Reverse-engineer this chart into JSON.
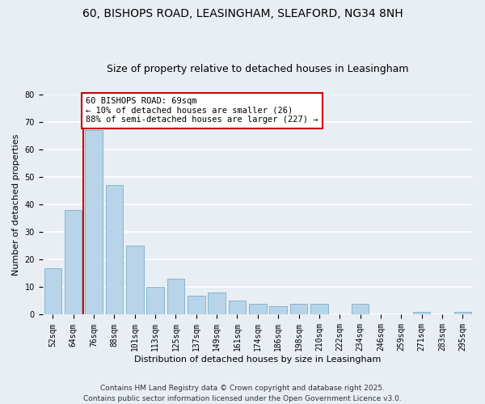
{
  "title": "60, BISHOPS ROAD, LEASINGHAM, SLEAFORD, NG34 8NH",
  "subtitle": "Size of property relative to detached houses in Leasingham",
  "xlabel": "Distribution of detached houses by size in Leasingham",
  "ylabel": "Number of detached properties",
  "bar_values": [
    17,
    38,
    67,
    47,
    25,
    10,
    13,
    7,
    8,
    5,
    4,
    3,
    4,
    4,
    0,
    4,
    0,
    0,
    1,
    0,
    1
  ],
  "bar_labels": [
    "52sqm",
    "64sqm",
    "76sqm",
    "88sqm",
    "101sqm",
    "113sqm",
    "125sqm",
    "137sqm",
    "149sqm",
    "161sqm",
    "174sqm",
    "186sqm",
    "198sqm",
    "210sqm",
    "222sqm",
    "234sqm",
    "246sqm",
    "259sqm",
    "271sqm",
    "283sqm",
    "295sqm"
  ],
  "bar_color": "#b8d4e8",
  "bar_edge_color": "#7aaec8",
  "vline_color": "#cc0000",
  "vline_pos": 1.5,
  "annotation_text": "60 BISHOPS ROAD: 69sqm\n← 10% of detached houses are smaller (26)\n88% of semi-detached houses are larger (227) →",
  "annotation_box_color": "#ffffff",
  "annotation_border_color": "#cc0000",
  "ylim": [
    0,
    80
  ],
  "yticks": [
    0,
    10,
    20,
    30,
    40,
    50,
    60,
    70,
    80
  ],
  "footer_line1": "Contains HM Land Registry data © Crown copyright and database right 2025.",
  "footer_line2": "Contains public sector information licensed under the Open Government Licence v3.0.",
  "bg_color": "#e8eef4",
  "plot_bg_color": "#e8eef4",
  "grid_color": "#ffffff",
  "title_fontsize": 10,
  "subtitle_fontsize": 9,
  "axis_label_fontsize": 8,
  "tick_fontsize": 7,
  "annotation_fontsize": 7.5,
  "footer_fontsize": 6.5
}
